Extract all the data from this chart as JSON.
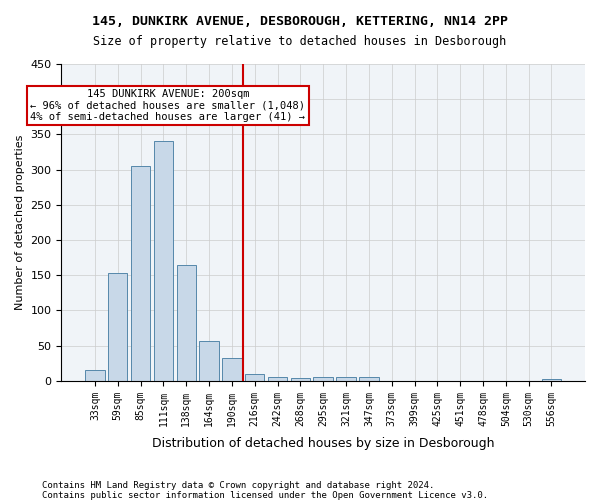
{
  "title1": "145, DUNKIRK AVENUE, DESBOROUGH, KETTERING, NN14 2PP",
  "title2": "Size of property relative to detached houses in Desborough",
  "xlabel": "Distribution of detached houses by size in Desborough",
  "ylabel": "Number of detached properties",
  "footnote1": "Contains HM Land Registry data © Crown copyright and database right 2024.",
  "footnote2": "Contains public sector information licensed under the Open Government Licence v3.0.",
  "bin_labels": [
    "33sqm",
    "59sqm",
    "85sqm",
    "111sqm",
    "138sqm",
    "164sqm",
    "190sqm",
    "216sqm",
    "242sqm",
    "268sqm",
    "295sqm",
    "321sqm",
    "347sqm",
    "373sqm",
    "399sqm",
    "425sqm",
    "451sqm",
    "478sqm",
    "504sqm",
    "530sqm",
    "556sqm"
  ],
  "bar_heights": [
    15,
    153,
    305,
    340,
    165,
    57,
    33,
    10,
    6,
    4,
    5,
    5,
    5,
    0,
    0,
    0,
    0,
    0,
    0,
    0,
    3
  ],
  "bar_color": "#c8d8e8",
  "bar_edge_color": "#5588aa",
  "property_line_x": 7,
  "property_sqm": 200,
  "property_line_color": "#cc0000",
  "annotation_text1": "145 DUNKIRK AVENUE: 200sqm",
  "annotation_text2": "← 96% of detached houses are smaller (1,048)",
  "annotation_text3": "4% of semi-detached houses are larger (41) →",
  "annotation_box_color": "#cc0000",
  "ylim": [
    0,
    450
  ],
  "yticks": [
    0,
    50,
    100,
    150,
    200,
    250,
    300,
    350,
    400,
    450
  ],
  "background_color": "#f0f4f8",
  "grid_color": "#cccccc"
}
